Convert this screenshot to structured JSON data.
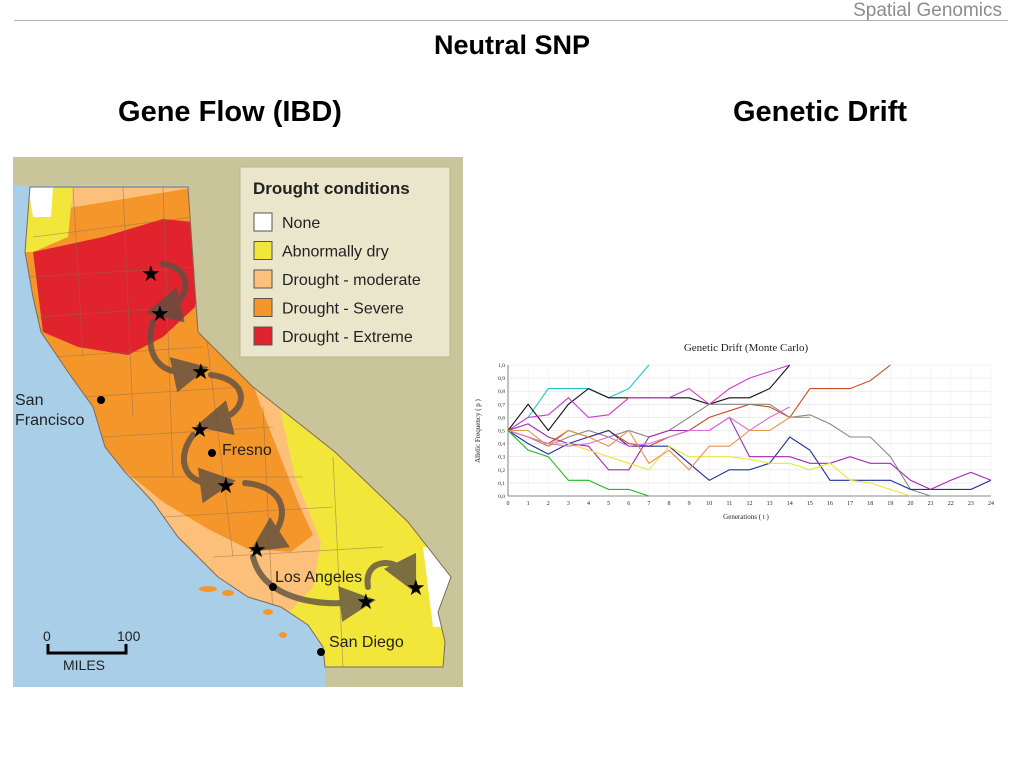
{
  "header": {
    "course": "Spatial Genomics"
  },
  "slide": {
    "title": "Neutral SNP"
  },
  "columns": {
    "left_heading": "Gene Flow (IBD)",
    "right_heading": "Genetic Drift"
  },
  "map": {
    "legend": {
      "title": "Drought conditions",
      "items": [
        {
          "label": "None",
          "color": "#ffffff"
        },
        {
          "label": "Abnormally dry",
          "color": "#f2e63b"
        },
        {
          "label": "Drought - moderate",
          "color": "#fcc07a"
        },
        {
          "label": "Drought - Severe",
          "color": "#f5962b"
        },
        {
          "label": "Drought - Extreme",
          "color": "#e0232d"
        }
      ]
    },
    "cities": {
      "san_francisco_1": "San",
      "san_francisco_2": "Francisco",
      "fresno": "Fresno",
      "los_angeles": "Los Angeles",
      "san_diego": "San Diego"
    },
    "scale": {
      "zero": "0",
      "max": "100",
      "unit": "MILES"
    },
    "colors": {
      "ocean": "#a9cfe8",
      "land_outside": "#c9c49a",
      "gap_color": "#d4cf9f"
    }
  },
  "chart_data": {
    "type": "line",
    "title": "Genetic Drift (Monte Carlo)",
    "xlabel": "Generations ( t )",
    "ylabel": "Allelic Frequency ( p )",
    "xlim": [
      0,
      24
    ],
    "ylim": [
      0,
      1
    ],
    "x_ticks": [
      "0",
      "1",
      "2",
      "3",
      "4",
      "5",
      "6",
      "7",
      "8",
      "9",
      "10",
      "11",
      "12",
      "13",
      "14",
      "15",
      "16",
      "17",
      "18",
      "19",
      "20",
      "21",
      "22",
      "23",
      "24"
    ],
    "y_ticks": [
      "0,0",
      "0,1",
      "0,2",
      "0,3",
      "0,4",
      "0,5",
      "0,6",
      "0,7",
      "0,8",
      "0,9",
      "1,0"
    ],
    "series": [
      {
        "color": "#22c6c6",
        "x": [
          0,
          1,
          2,
          3,
          4,
          5,
          6,
          7
        ],
        "values": [
          0.5,
          0.6,
          0.82,
          0.82,
          0.82,
          0.75,
          0.82,
          1.0
        ]
      },
      {
        "color": "#111111",
        "x": [
          0,
          1,
          2,
          3,
          4,
          5,
          6,
          7,
          8,
          9,
          10,
          11,
          12,
          13,
          14
        ],
        "values": [
          0.5,
          0.7,
          0.5,
          0.7,
          0.82,
          0.75,
          0.75,
          0.75,
          0.75,
          0.75,
          0.7,
          0.75,
          0.75,
          0.82,
          1.0
        ]
      },
      {
        "color": "#cc3ccc",
        "x": [
          0,
          1,
          2,
          3,
          4,
          5,
          6,
          7,
          8,
          9,
          10,
          11,
          12,
          13,
          14
        ],
        "values": [
          0.5,
          0.6,
          0.62,
          0.75,
          0.6,
          0.62,
          0.75,
          0.75,
          0.75,
          0.82,
          0.7,
          0.82,
          0.9,
          0.95,
          1.0
        ]
      },
      {
        "color": "#cc4a24",
        "x": [
          0,
          1,
          2,
          3,
          4,
          5,
          6,
          7,
          8,
          9,
          10,
          11,
          12,
          13,
          14,
          15,
          16,
          17,
          18,
          19
        ],
        "values": [
          0.5,
          0.45,
          0.4,
          0.5,
          0.45,
          0.5,
          0.4,
          0.38,
          0.45,
          0.5,
          0.6,
          0.65,
          0.7,
          0.68,
          0.6,
          0.82,
          0.82,
          0.82,
          0.88,
          1.0
        ]
      },
      {
        "color": "#888888",
        "x": [
          0,
          1,
          2,
          3,
          4,
          5,
          6,
          7,
          8,
          9,
          10,
          11,
          12,
          13,
          14,
          15,
          16,
          17,
          18,
          19,
          20,
          21
        ],
        "values": [
          0.5,
          0.45,
          0.38,
          0.45,
          0.5,
          0.45,
          0.5,
          0.45,
          0.5,
          0.6,
          0.7,
          0.7,
          0.7,
          0.7,
          0.6,
          0.62,
          0.55,
          0.45,
          0.45,
          0.3,
          0.05,
          0.0
        ]
      },
      {
        "color": "#1f2f9a",
        "x": [
          0,
          1,
          2,
          3,
          4,
          5,
          6,
          7,
          8,
          9,
          10,
          11,
          12,
          13,
          14,
          15,
          16,
          17,
          18,
          19,
          20,
          21,
          22,
          23,
          24
        ],
        "values": [
          0.5,
          0.4,
          0.32,
          0.4,
          0.45,
          0.5,
          0.38,
          0.38,
          0.38,
          0.25,
          0.12,
          0.2,
          0.2,
          0.25,
          0.45,
          0.35,
          0.12,
          0.12,
          0.12,
          0.12,
          0.05,
          0.05,
          0.05,
          0.05,
          0.12
        ]
      },
      {
        "color": "#a02ab0",
        "x": [
          0,
          1,
          2,
          3,
          4,
          5,
          6,
          7,
          8,
          9,
          10,
          11,
          12,
          13,
          14,
          15,
          16,
          17,
          18,
          19,
          20,
          21,
          22,
          23,
          24
        ],
        "values": [
          0.5,
          0.55,
          0.45,
          0.4,
          0.38,
          0.2,
          0.2,
          0.45,
          0.5,
          0.5,
          0.5,
          0.6,
          0.3,
          0.3,
          0.3,
          0.25,
          0.25,
          0.3,
          0.25,
          0.25,
          0.12,
          0.05,
          0.12,
          0.18,
          0.12
        ]
      },
      {
        "color": "#e8e83a",
        "x": [
          0,
          1,
          2,
          3,
          4,
          5,
          6,
          7,
          8,
          9,
          10,
          11,
          12,
          13,
          14,
          15,
          16,
          17,
          18,
          19,
          20
        ],
        "values": [
          0.5,
          0.45,
          0.4,
          0.4,
          0.35,
          0.3,
          0.25,
          0.2,
          0.38,
          0.3,
          0.3,
          0.3,
          0.28,
          0.25,
          0.25,
          0.2,
          0.25,
          0.12,
          0.1,
          0.05,
          0.0
        ]
      },
      {
        "color": "#e06ad8",
        "x": [
          0,
          1,
          2,
          3,
          4,
          5,
          6,
          7,
          8,
          9,
          10,
          11,
          12,
          13,
          14
        ],
        "values": [
          0.5,
          0.45,
          0.4,
          0.38,
          0.4,
          0.45,
          0.38,
          0.4,
          0.45,
          0.5,
          0.5,
          0.6,
          0.5,
          0.6,
          0.68
        ]
      },
      {
        "color": "#e8914a",
        "x": [
          0,
          1,
          2,
          3,
          4,
          5,
          6,
          7,
          8,
          9,
          10,
          11,
          12,
          13,
          14,
          15
        ],
        "values": [
          0.5,
          0.5,
          0.38,
          0.5,
          0.45,
          0.38,
          0.5,
          0.25,
          0.35,
          0.2,
          0.38,
          0.38,
          0.5,
          0.5,
          0.6,
          0.6
        ]
      },
      {
        "color": "#22b822",
        "x": [
          0,
          1,
          2,
          3,
          4,
          5,
          6,
          7
        ],
        "values": [
          0.5,
          0.35,
          0.3,
          0.12,
          0.12,
          0.05,
          0.05,
          0.0
        ]
      }
    ]
  }
}
